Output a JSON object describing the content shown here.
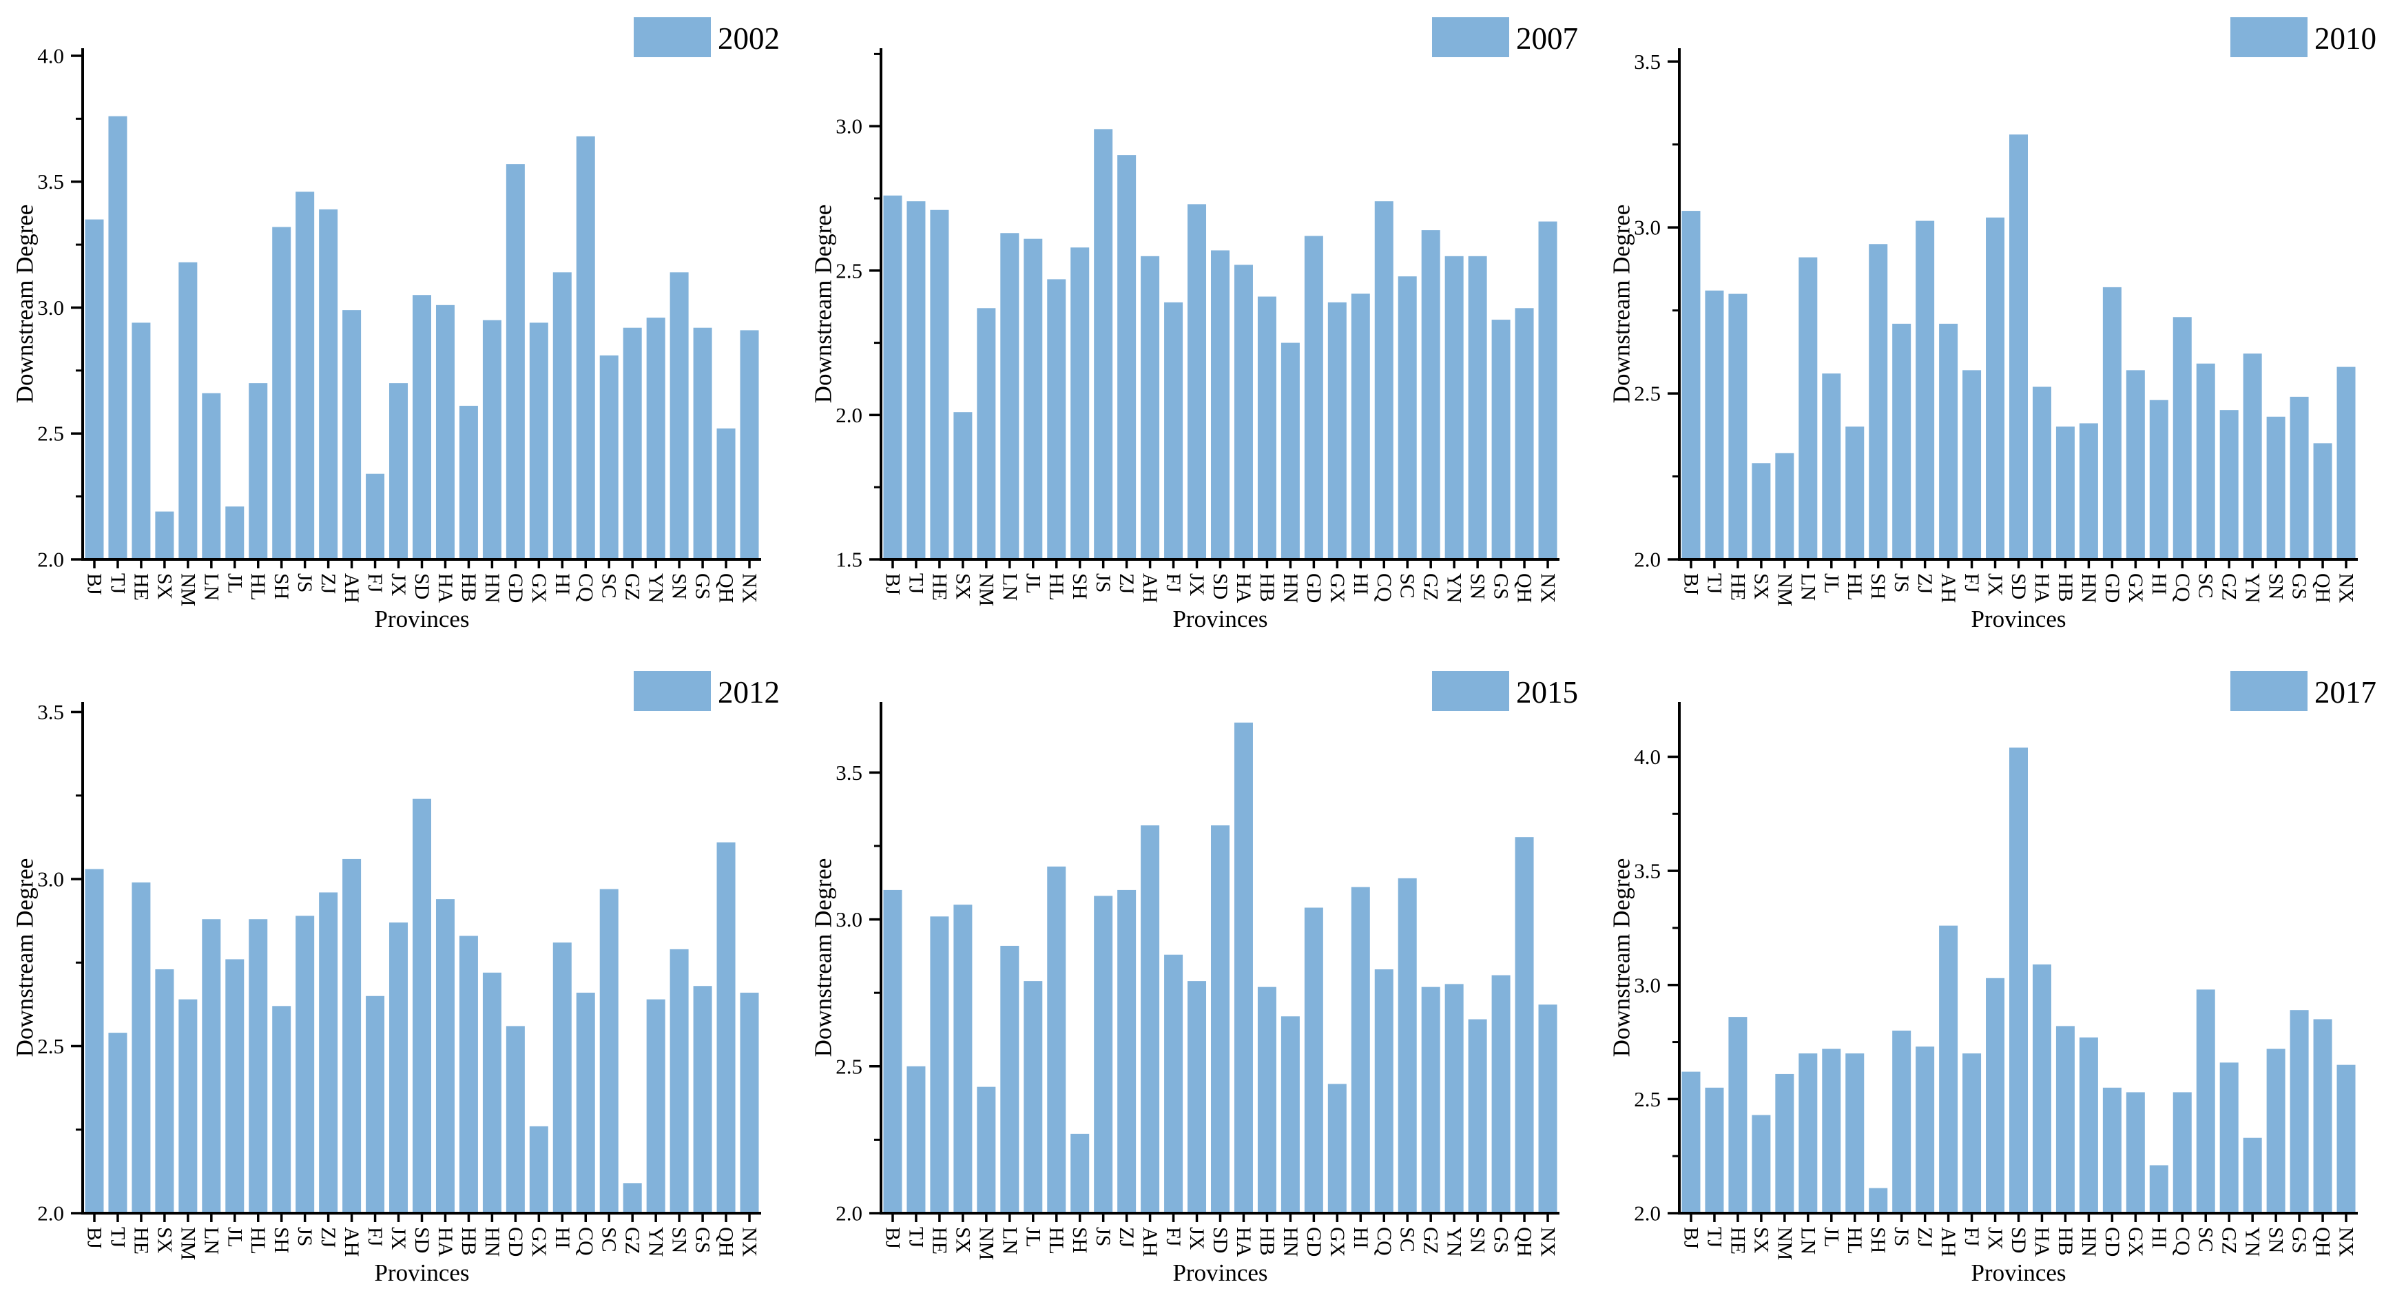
{
  "figure": {
    "background": "#ffffff",
    "bar_color": "#82B2DA",
    "axis_color": "#000000",
    "ylabel": "Downstream Degree",
    "xlabel": "Provinces"
  },
  "chart_data": [
    {
      "type": "bar",
      "title": "2002",
      "legend": "2002",
      "xlabel": "Provinces",
      "ylabel": "Downstream Degree",
      "legend_position": "top-right",
      "grid": false,
      "yticks": [
        2.0,
        2.5,
        3.0,
        3.5,
        4.0
      ],
      "minor_tick_step": 0.25,
      "ylim": [
        2.0,
        4.03
      ],
      "categories": [
        "BJ",
        "TJ",
        "HE",
        "SX",
        "NM",
        "LN",
        "JL",
        "HL",
        "SH",
        "JS",
        "ZJ",
        "AH",
        "FJ",
        "JX",
        "SD",
        "HA",
        "HB",
        "HN",
        "GD",
        "GX",
        "HI",
        "CQ",
        "SC",
        "GZ",
        "YN",
        "SN",
        "GS",
        "QH",
        "NX"
      ],
      "values": [
        3.35,
        3.76,
        2.94,
        2.19,
        3.18,
        2.66,
        2.21,
        2.7,
        3.32,
        3.46,
        3.39,
        2.99,
        2.34,
        2.7,
        3.05,
        3.01,
        2.61,
        2.95,
        3.57,
        2.94,
        3.14,
        3.68,
        2.81,
        2.92,
        2.96,
        3.14,
        2.92,
        2.52,
        2.91
      ]
    },
    {
      "type": "bar",
      "title": "2007",
      "legend": "2007",
      "xlabel": "Provinces",
      "ylabel": "Downstream Degree",
      "legend_position": "top-right",
      "grid": false,
      "yticks": [
        1.5,
        2.0,
        2.5,
        3.0
      ],
      "minor_tick_step": 0.25,
      "ylim": [
        1.5,
        3.27
      ],
      "categories": [
        "BJ",
        "TJ",
        "HE",
        "SX",
        "NM",
        "LN",
        "JL",
        "HL",
        "SH",
        "JS",
        "ZJ",
        "AH",
        "FJ",
        "JX",
        "SD",
        "HA",
        "HB",
        "HN",
        "GD",
        "GX",
        "HI",
        "CQ",
        "SC",
        "GZ",
        "YN",
        "SN",
        "GS",
        "QH",
        "NX"
      ],
      "values": [
        2.76,
        2.74,
        2.71,
        2.01,
        2.37,
        2.63,
        2.61,
        2.47,
        2.58,
        2.99,
        2.9,
        2.55,
        2.39,
        2.73,
        2.57,
        2.52,
        2.41,
        2.25,
        2.62,
        2.39,
        2.42,
        2.74,
        2.48,
        2.64,
        2.55,
        2.55,
        2.33,
        2.37,
        2.67
      ]
    },
    {
      "type": "bar",
      "title": "2010",
      "legend": "2010",
      "xlabel": "Provinces",
      "ylabel": "Downstream Degree",
      "legend_position": "top-right",
      "grid": false,
      "yticks": [
        2.0,
        2.5,
        3.0,
        3.5
      ],
      "minor_tick_step": 0.25,
      "ylim": [
        2.0,
        3.54
      ],
      "categories": [
        "BJ",
        "TJ",
        "HE",
        "SX",
        "NM",
        "LN",
        "JL",
        "HL",
        "SH",
        "JS",
        "ZJ",
        "AH",
        "FJ",
        "JX",
        "SD",
        "HA",
        "HB",
        "HN",
        "GD",
        "GX",
        "HI",
        "CQ",
        "SC",
        "GZ",
        "YN",
        "SN",
        "GS",
        "QH",
        "NX"
      ],
      "values": [
        3.05,
        2.81,
        2.8,
        2.29,
        2.32,
        2.91,
        2.56,
        2.4,
        2.95,
        2.71,
        3.02,
        2.71,
        2.57,
        3.03,
        3.28,
        2.52,
        2.4,
        2.41,
        2.82,
        2.57,
        2.48,
        2.73,
        2.59,
        2.45,
        2.62,
        2.43,
        2.49,
        2.35,
        2.58
      ]
    },
    {
      "type": "bar",
      "title": "2012",
      "legend": "2012",
      "xlabel": "Provinces",
      "ylabel": "Downstream Degree",
      "legend_position": "top-right",
      "grid": false,
      "yticks": [
        2.0,
        2.5,
        3.0,
        3.5
      ],
      "minor_tick_step": 0.25,
      "ylim": [
        2.0,
        3.53
      ],
      "categories": [
        "BJ",
        "TJ",
        "HE",
        "SX",
        "NM",
        "LN",
        "JL",
        "HL",
        "SH",
        "JS",
        "ZJ",
        "AH",
        "FJ",
        "JX",
        "SD",
        "HA",
        "HB",
        "HN",
        "GD",
        "GX",
        "HI",
        "CQ",
        "SC",
        "GZ",
        "YN",
        "SN",
        "GS",
        "QH",
        "NX"
      ],
      "values": [
        3.03,
        2.54,
        2.99,
        2.73,
        2.64,
        2.88,
        2.76,
        2.88,
        2.62,
        2.89,
        2.96,
        3.06,
        2.65,
        2.87,
        3.24,
        2.94,
        2.83,
        2.72,
        2.56,
        2.26,
        2.81,
        2.66,
        2.97,
        2.09,
        2.64,
        2.79,
        2.68,
        3.11,
        2.66
      ]
    },
    {
      "type": "bar",
      "title": "2015",
      "legend": "2015",
      "xlabel": "Provinces",
      "ylabel": "Downstream Degree",
      "legend_position": "top-right",
      "grid": false,
      "yticks": [
        2.0,
        2.5,
        3.0,
        3.5
      ],
      "minor_tick_step": 0.25,
      "ylim": [
        2.0,
        3.74
      ],
      "categories": [
        "BJ",
        "TJ",
        "HE",
        "SX",
        "NM",
        "LN",
        "JL",
        "HL",
        "SH",
        "JS",
        "ZJ",
        "AH",
        "FJ",
        "JX",
        "SD",
        "HA",
        "HB",
        "HN",
        "GD",
        "GX",
        "HI",
        "CQ",
        "SC",
        "GZ",
        "YN",
        "SN",
        "GS",
        "QH",
        "NX"
      ],
      "values": [
        3.1,
        2.5,
        3.01,
        3.05,
        2.43,
        2.91,
        2.79,
        3.18,
        2.27,
        3.08,
        3.1,
        3.32,
        2.88,
        2.79,
        3.32,
        3.67,
        2.77,
        2.67,
        3.04,
        2.44,
        3.11,
        2.83,
        3.14,
        2.77,
        2.78,
        2.66,
        2.81,
        3.28,
        2.71
      ]
    },
    {
      "type": "bar",
      "title": "2017",
      "legend": "2017",
      "xlabel": "Provinces",
      "ylabel": "Downstream Degree",
      "legend_position": "top-right",
      "grid": false,
      "yticks": [
        2.0,
        2.5,
        3.0,
        3.5,
        4.0
      ],
      "minor_tick_step": 0.25,
      "ylim": [
        2.0,
        4.24
      ],
      "categories": [
        "BJ",
        "TJ",
        "HE",
        "SX",
        "NM",
        "LN",
        "JL",
        "HL",
        "SH",
        "JS",
        "ZJ",
        "AH",
        "FJ",
        "JX",
        "SD",
        "HA",
        "HB",
        "HN",
        "GD",
        "GX",
        "HI",
        "CQ",
        "SC",
        "GZ",
        "YN",
        "SN",
        "GS",
        "QH",
        "NX"
      ],
      "values": [
        2.62,
        2.55,
        2.86,
        2.43,
        2.61,
        2.7,
        2.72,
        2.7,
        2.11,
        2.8,
        2.73,
        3.26,
        2.7,
        3.03,
        4.04,
        3.09,
        2.82,
        2.77,
        2.55,
        2.53,
        2.21,
        2.53,
        2.98,
        2.66,
        2.33,
        2.72,
        2.89,
        2.85,
        2.65
      ]
    }
  ]
}
